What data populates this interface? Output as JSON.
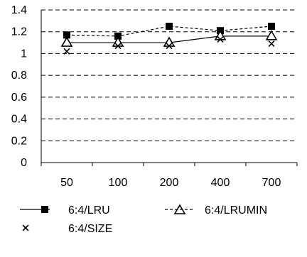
{
  "chart_data": {
    "type": "line",
    "categories": [
      "50",
      "100",
      "200",
      "400",
      "700"
    ],
    "ylim": [
      0,
      1.4
    ],
    "yticks": [
      "0",
      "0.2",
      "0.4",
      "0.6",
      "0.8",
      "1",
      "1.2",
      "1.4"
    ],
    "grid": true,
    "legend_position": "bottom",
    "series": [
      {
        "name": "6:4/LRU",
        "marker": "square",
        "line": "dashed",
        "values": [
          1.17,
          1.16,
          1.25,
          1.21,
          1.25
        ]
      },
      {
        "name": "6:4/LRUMIN",
        "marker": "triangle-open",
        "line": "solid",
        "values": [
          1.1,
          1.1,
          1.1,
          1.16,
          1.16
        ]
      },
      {
        "name": "6:4/SIZE",
        "marker": "x",
        "line": "none",
        "values": [
          1.02,
          1.07,
          1.07,
          1.13,
          1.09
        ]
      }
    ]
  }
}
